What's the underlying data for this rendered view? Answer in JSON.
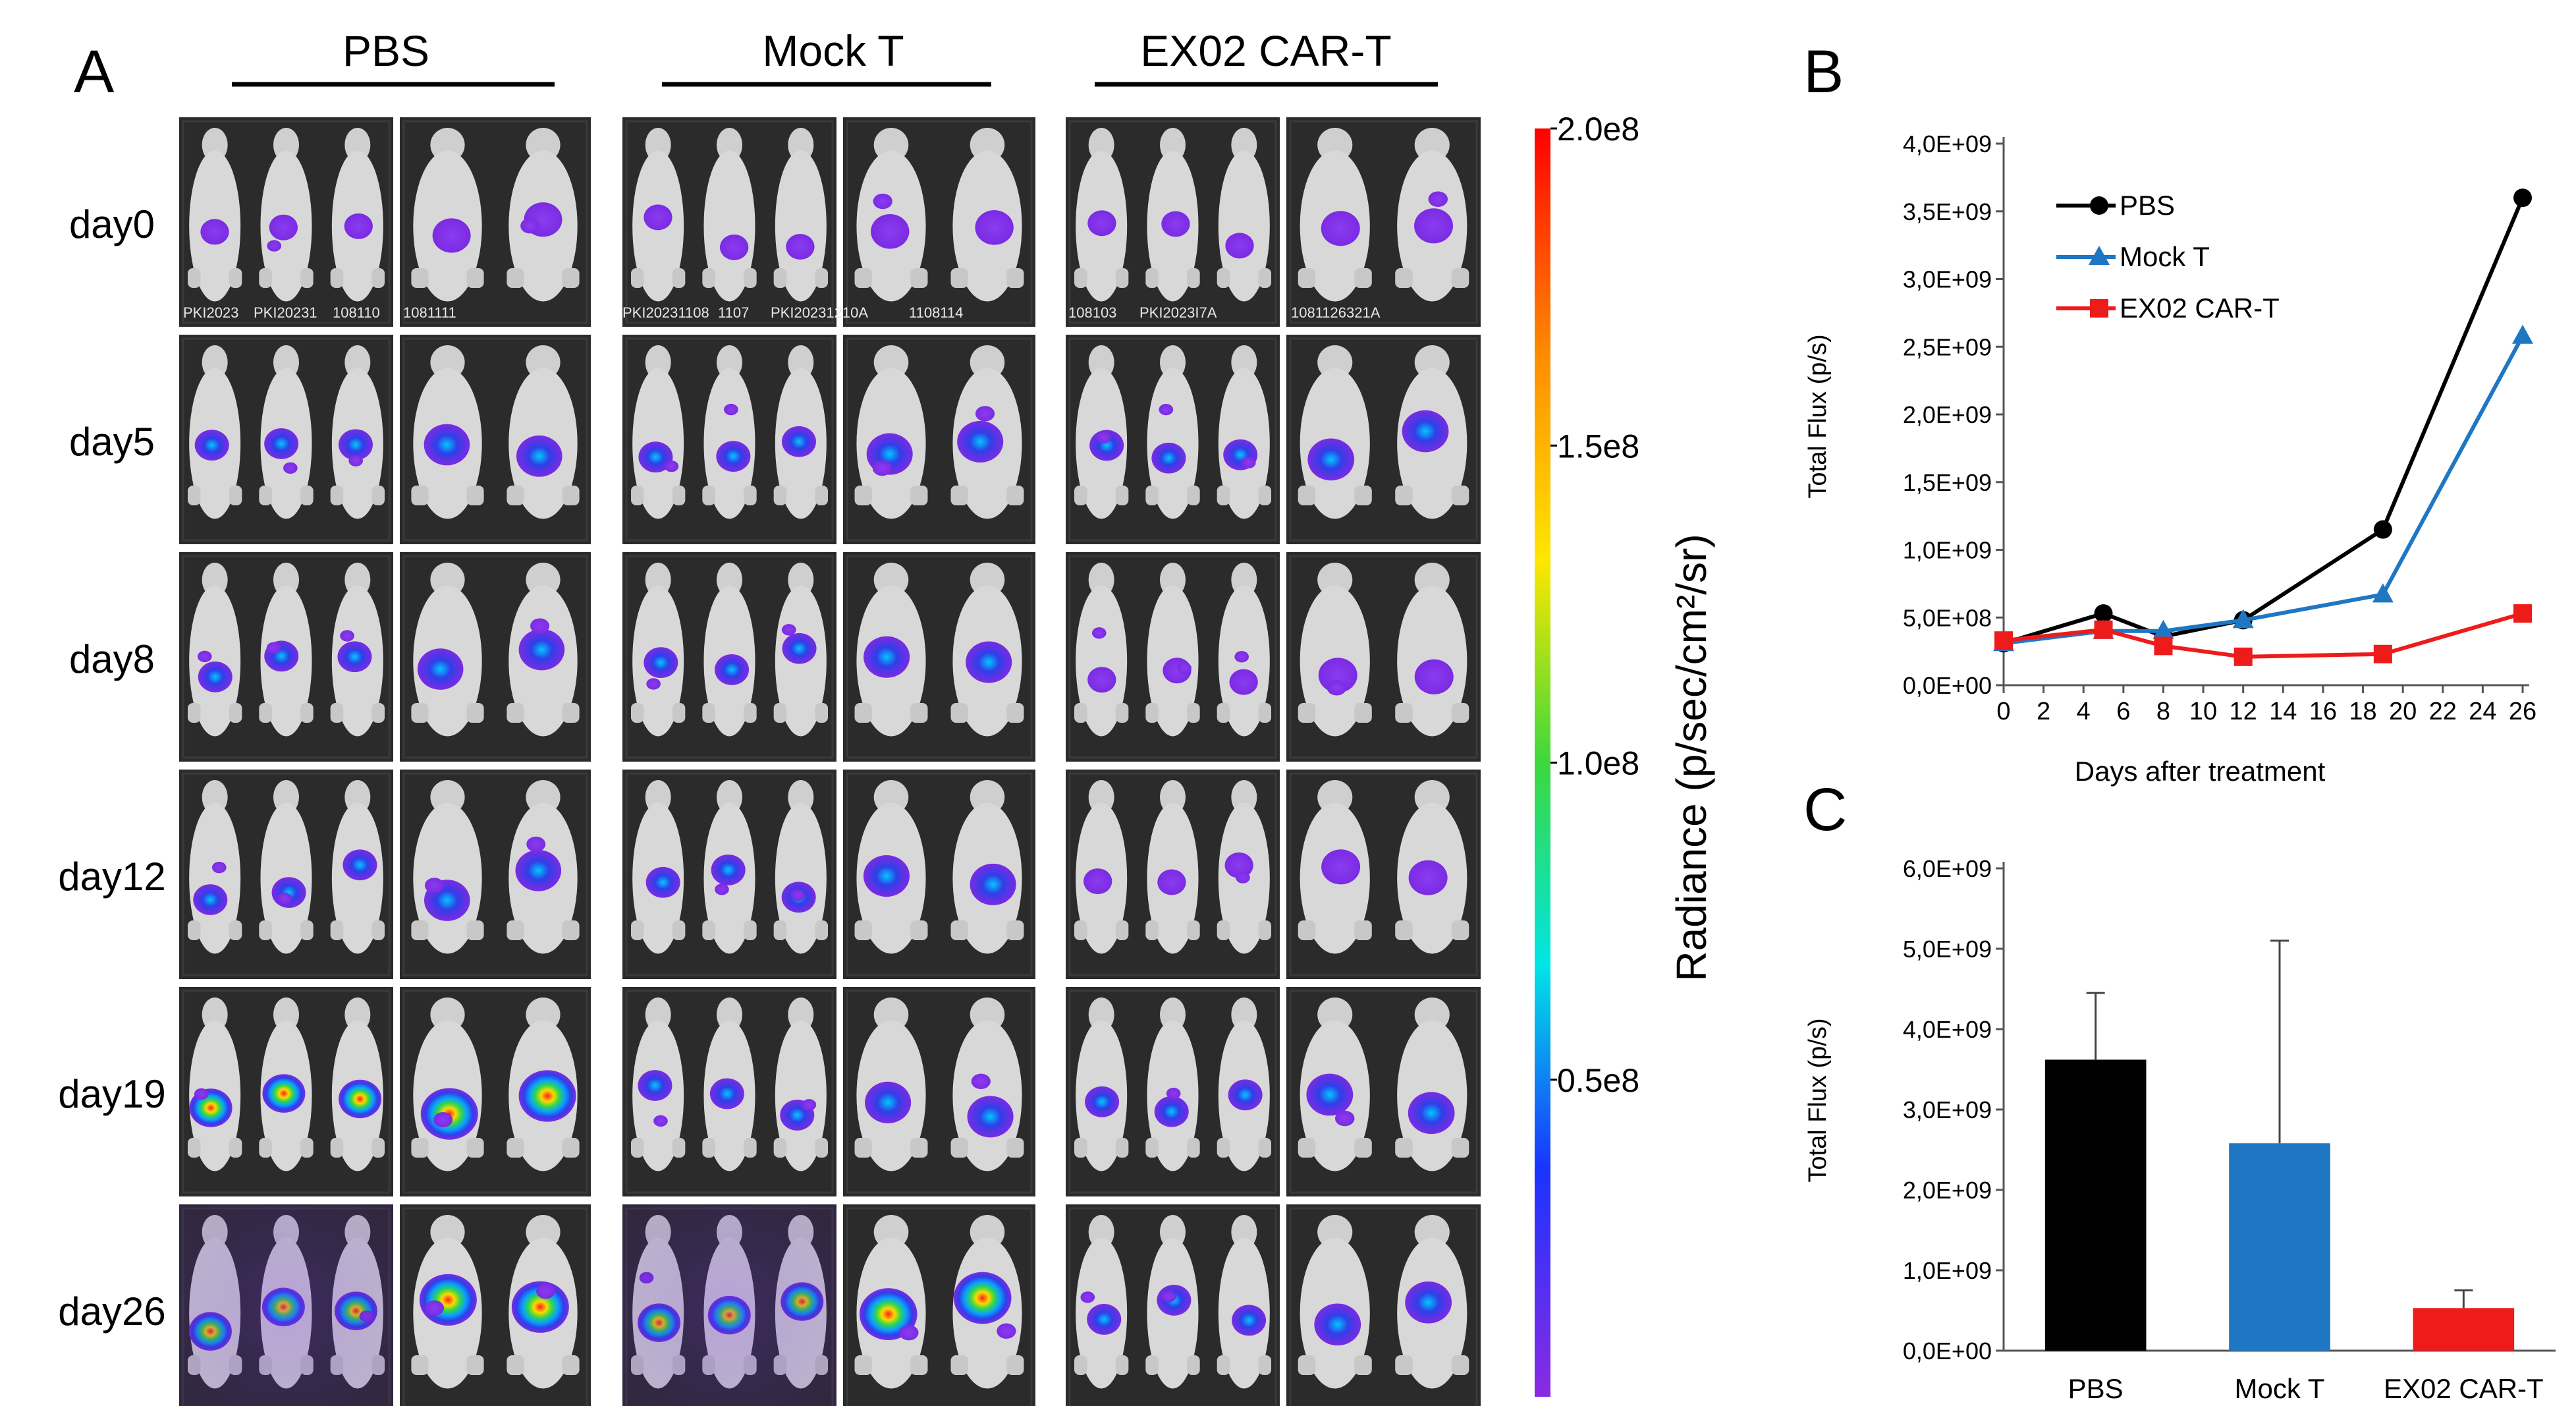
{
  "panel_a": {
    "letter": "A",
    "groups": [
      "PBS",
      "Mock T",
      "EX02 CAR-T"
    ],
    "days": [
      "day0",
      "day5",
      "day8",
      "day12",
      "day19",
      "day26"
    ],
    "mouse_ids_day0": [
      "PKI2023",
      "PKI20231",
      "108110",
      "1081111",
      "PKI20231108",
      "1107",
      "PKI20231210A",
      "1108114",
      "108103",
      "PKI2023I7A",
      "1081126321A"
    ]
  },
  "colorbar": {
    "title": "Radiance (p/sec/cm²/sr)",
    "ticks": [
      "2.0e8",
      "1.5e8",
      "1.0e8",
      "0.5e8"
    ],
    "tick_values": [
      2.0,
      1.5,
      1.0,
      0.5
    ],
    "range": [
      0.0,
      2.0
    ]
  },
  "colors": {
    "PBS": "#000000",
    "Mock T": "#1f77c4",
    "EX02 CAR-T": "#ee1b1b"
  },
  "chart_data": [
    {
      "panel": "B",
      "type": "line",
      "title": "",
      "xlabel": "Days after treatment",
      "ylabel": "Total Flux (p/s)",
      "x_ticks": [
        0,
        2,
        4,
        6,
        8,
        10,
        12,
        14,
        16,
        18,
        20,
        22,
        24,
        26
      ],
      "xlim": [
        0,
        26
      ],
      "y_ticks": [
        0,
        500000000,
        1000000000,
        1500000000,
        2000000000,
        2500000000,
        3000000000,
        3500000000,
        4000000000
      ],
      "y_tick_labels": [
        "0,0E+00",
        "5,0E+08",
        "1,0E+09",
        "1,5E+09",
        "2,0E+09",
        "2,5E+09",
        "3,0E+09",
        "3,5E+09",
        "4,0E+09"
      ],
      "ylim": [
        0,
        4000000000
      ],
      "legend": "top-left",
      "series": [
        {
          "name": "PBS",
          "marker": "circle",
          "x": [
            0,
            5,
            8,
            12,
            19,
            26
          ],
          "values": [
            310000000,
            530000000,
            360000000,
            480000000,
            1150000000,
            3600000000
          ]
        },
        {
          "name": "Mock T",
          "marker": "triangle",
          "x": [
            0,
            5,
            8,
            12,
            19,
            26
          ],
          "values": [
            310000000,
            400000000,
            400000000,
            480000000,
            670000000,
            2580000000
          ]
        },
        {
          "name": "EX02 CAR-T",
          "marker": "square",
          "x": [
            0,
            5,
            8,
            12,
            19,
            26
          ],
          "values": [
            330000000,
            410000000,
            290000000,
            210000000,
            230000000,
            530000000
          ]
        }
      ]
    },
    {
      "panel": "C",
      "type": "bar",
      "title": "",
      "xlabel": "",
      "ylabel": "Total Flux (p/s)",
      "categories": [
        "PBS",
        "Mock T",
        "EX02 CAR-T"
      ],
      "values": [
        3620000000,
        2580000000,
        530000000
      ],
      "error_upper": [
        830000000,
        2520000000,
        220000000
      ],
      "y_ticks": [
        0,
        1000000000,
        2000000000,
        3000000000,
        4000000000,
        5000000000,
        6000000000
      ],
      "y_tick_labels": [
        "0,0E+00",
        "1,0E+09",
        "2,0E+09",
        "3,0E+09",
        "4,0E+09",
        "5,0E+09",
        "6,0E+09"
      ],
      "ylim": [
        0,
        6000000000
      ]
    }
  ]
}
